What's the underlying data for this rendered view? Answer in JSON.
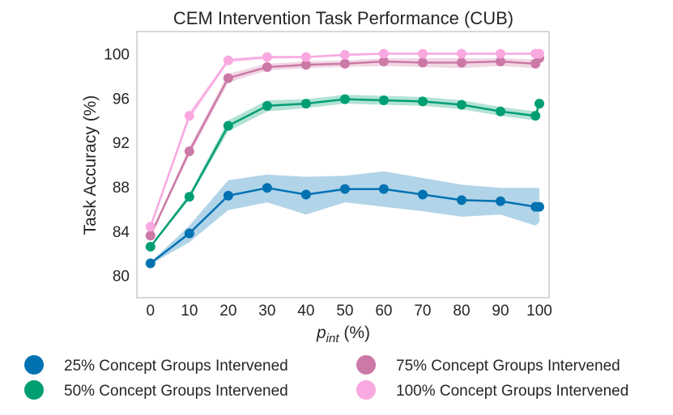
{
  "chart_data": {
    "type": "line",
    "title": "CEM Intervention Task Performance (CUB)",
    "xlabel_main": "p",
    "xlabel_sub": "int",
    "xlabel_unit": " (%)",
    "ylabel": "Task Accuracy (%)",
    "xlim": [
      -3.5,
      102.5
    ],
    "ylim": [
      78,
      102
    ],
    "xticks": [
      0,
      10,
      20,
      30,
      40,
      50,
      60,
      70,
      80,
      90,
      100
    ],
    "yticks": [
      80,
      84,
      88,
      92,
      96,
      100
    ],
    "x": [
      0,
      10,
      20,
      30,
      40,
      50,
      60,
      70,
      80,
      90,
      99,
      100
    ],
    "series": [
      {
        "name": "25% Concept Groups Intervened",
        "color": "#0072B2",
        "values": [
          81.1,
          83.8,
          87.2,
          87.9,
          87.3,
          87.8,
          87.8,
          87.3,
          86.8,
          86.7,
          86.2,
          86.2
        ],
        "lower": [
          81.0,
          83.0,
          85.9,
          86.6,
          85.5,
          86.6,
          86.2,
          85.8,
          85.3,
          85.5,
          84.5,
          84.8
        ],
        "upper": [
          81.2,
          84.5,
          88.6,
          89.1,
          88.9,
          89.0,
          89.4,
          88.8,
          88.2,
          87.9,
          87.9,
          87.9
        ]
      },
      {
        "name": "50% Concept Groups Intervened",
        "color": "#009E73",
        "values": [
          82.6,
          87.1,
          93.5,
          95.3,
          95.5,
          95.9,
          95.8,
          95.7,
          95.4,
          94.8,
          94.4,
          95.5
        ],
        "lower": [
          82.5,
          86.9,
          93.0,
          94.8,
          95.1,
          95.5,
          95.4,
          95.3,
          95.0,
          94.4,
          94.0,
          95.2
        ],
        "upper": [
          82.7,
          87.4,
          94.0,
          95.8,
          95.9,
          96.3,
          96.2,
          96.1,
          95.8,
          95.2,
          94.8,
          95.8
        ]
      },
      {
        "name": "75% Concept Groups Intervened",
        "color": "#CC79A7",
        "values": [
          83.6,
          91.2,
          97.8,
          98.8,
          99.0,
          99.1,
          99.3,
          99.2,
          99.2,
          99.3,
          99.1,
          99.6
        ],
        "lower": [
          83.5,
          90.8,
          97.4,
          98.5,
          98.7,
          98.8,
          98.9,
          98.8,
          98.7,
          98.9,
          98.7,
          99.3
        ],
        "upper": [
          83.7,
          91.6,
          98.2,
          99.1,
          99.3,
          99.4,
          99.6,
          99.6,
          99.6,
          99.6,
          99.5,
          99.9
        ]
      },
      {
        "name": "100% Concept Groups Intervened",
        "color": "#F9A8E0",
        "values": [
          84.4,
          94.4,
          99.4,
          99.7,
          99.7,
          99.9,
          100.0,
          100.0,
          100.0,
          100.0,
          100.0,
          100.0
        ],
        "lower": [
          84.3,
          94.0,
          99.2,
          99.5,
          99.6,
          99.8,
          99.9,
          99.9,
          99.9,
          99.9,
          99.9,
          99.9
        ],
        "upper": [
          84.5,
          94.8,
          99.6,
          99.8,
          99.8,
          100.0,
          100.1,
          100.1,
          100.1,
          100.1,
          100.1,
          100.1
        ]
      }
    ],
    "legend_position": "bottom"
  }
}
